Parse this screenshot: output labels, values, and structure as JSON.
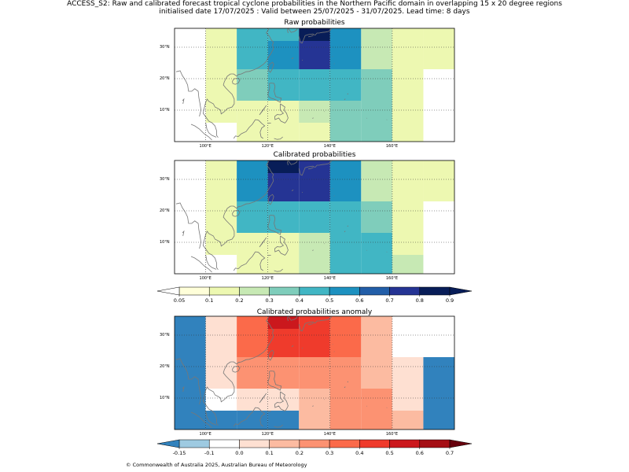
{
  "title": {
    "line1": "ACCESS_S2: Raw and calibrated forecast tropical cyclone probabilities in the Northern Pacific domain in overlapping 15 x 20 degree regions",
    "line2": "initialised date 17/07/2025 :  Valid between 25/07/2025 - 31/07/2025. Lead time: 8 days"
  },
  "panels": [
    {
      "title": "Raw probabilities",
      "colormap": "prob",
      "cells": [
        [
          null,
          0.15,
          0.45,
          0.45,
          0.8,
          0.55,
          0.25,
          0.15,
          0.1
        ],
        [
          null,
          0.15,
          0.45,
          0.55,
          0.7,
          0.55,
          0.25,
          0.15,
          0.1
        ],
        [
          null,
          0.15,
          0.35,
          0.45,
          0.45,
          0.45,
          0.35,
          0.15,
          null
        ],
        [
          null,
          0.1,
          0.15,
          0.15,
          0.25,
          0.35,
          0.35,
          0.15,
          null
        ],
        [
          null,
          null,
          0.15,
          0.1,
          0.15,
          0.35,
          0.35,
          0.15,
          null
        ]
      ]
    },
    {
      "title": "Calibrated probabilities",
      "colormap": "prob",
      "cells": [
        [
          null,
          0.15,
          0.55,
          0.85,
          0.7,
          0.55,
          0.25,
          0.1,
          0.1
        ],
        [
          null,
          0.15,
          0.55,
          0.7,
          0.7,
          0.55,
          0.25,
          0.1,
          0.1
        ],
        [
          null,
          0.15,
          0.45,
          0.45,
          0.45,
          0.45,
          0.35,
          0.15,
          null
        ],
        [
          null,
          0.1,
          0.15,
          0.15,
          0.25,
          0.45,
          0.45,
          0.15,
          null
        ],
        [
          null,
          null,
          0.15,
          0.1,
          0.25,
          0.45,
          0.45,
          0.25,
          null
        ]
      ]
    },
    {
      "title": "Calibrated probabilities anomaly",
      "colormap": "anom",
      "cells": [
        [
          -0.2,
          0.05,
          0.35,
          0.55,
          0.45,
          0.35,
          0.1,
          -0.1,
          -0.1
        ],
        [
          -0.2,
          0.05,
          0.35,
          0.45,
          0.45,
          0.35,
          0.1,
          -0.1,
          -0.1
        ],
        [
          -0.2,
          0.05,
          0.25,
          0.25,
          0.25,
          0.25,
          0.15,
          0.05,
          -0.2
        ],
        [
          -0.2,
          -0.1,
          0.05,
          0.05,
          0.1,
          0.25,
          0.25,
          0.05,
          -0.2
        ],
        [
          -0.2,
          -0.2,
          -0.2,
          -0.2,
          0.1,
          0.25,
          0.25,
          0.1,
          -0.2
        ]
      ]
    }
  ],
  "map": {
    "lon_range": [
      90,
      180
    ],
    "lat_range": [
      0,
      36
    ],
    "lon_ticks": [
      "100°E",
      "120°E",
      "140°E",
      "160°E"
    ],
    "lat_ticks": [
      "30°N",
      "20°N",
      "10°N"
    ]
  },
  "colorbars": [
    {
      "name": "probability",
      "ticks": [
        "0.05",
        "0.1",
        "0.2",
        "0.3",
        "0.4",
        "0.5",
        "0.6",
        "0.7",
        "0.8",
        "0.9"
      ],
      "colors": [
        "#ffffd9",
        "#edf8b1",
        "#c7e9b4",
        "#7fcdbb",
        "#41b6c4",
        "#1d91c0",
        "#225ea8",
        "#253494",
        "#081d58"
      ],
      "under_color": "#ffffff",
      "over_color": "#081d58"
    },
    {
      "name": "anomaly",
      "ticks": [
        "-0.15",
        "-0.1",
        "0.0",
        "0.1",
        "0.2",
        "0.3",
        "0.4",
        "0.5",
        "0.6",
        "0.7"
      ],
      "colors": [
        "#9ecae1",
        "#ffffff",
        "#fee0d2",
        "#fcbba1",
        "#fc9272",
        "#fb6a4a",
        "#ef3b2c",
        "#cb181d",
        "#a50f15"
      ],
      "under_color": "#3182bd",
      "over_color": "#67000d"
    }
  ],
  "footer": "© Commonwealth of Australia 2025, Australian Bureau of Meteorology"
}
